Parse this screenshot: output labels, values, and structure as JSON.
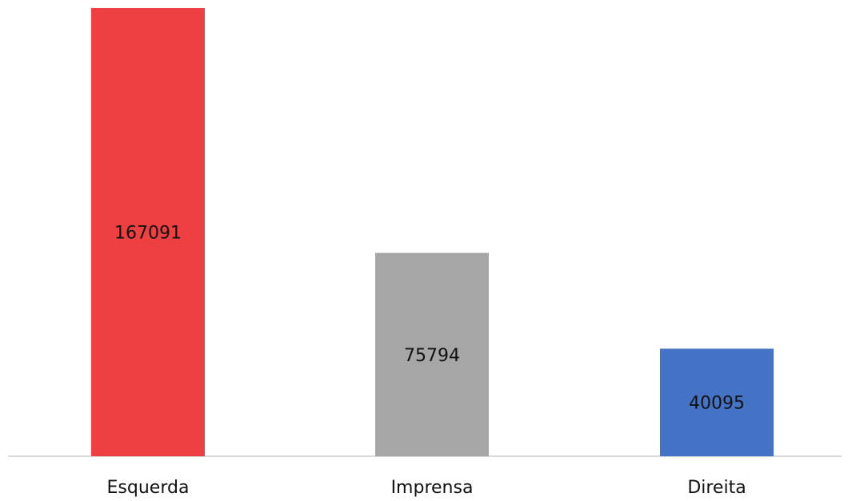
{
  "chart_data": {
    "type": "bar",
    "title": "",
    "xlabel": "",
    "ylabel": "",
    "categories": [
      "Esquerda",
      "Imprensa",
      "Direita"
    ],
    "values": [
      167091,
      75794,
      40095
    ],
    "value_labels": [
      "167091",
      "75794",
      "40095"
    ],
    "colors": [
      "#EE4040",
      "#A6A6A6",
      "#4472C4"
    ],
    "ylim": [
      0,
      167091
    ],
    "grid": false,
    "legend": "none"
  }
}
